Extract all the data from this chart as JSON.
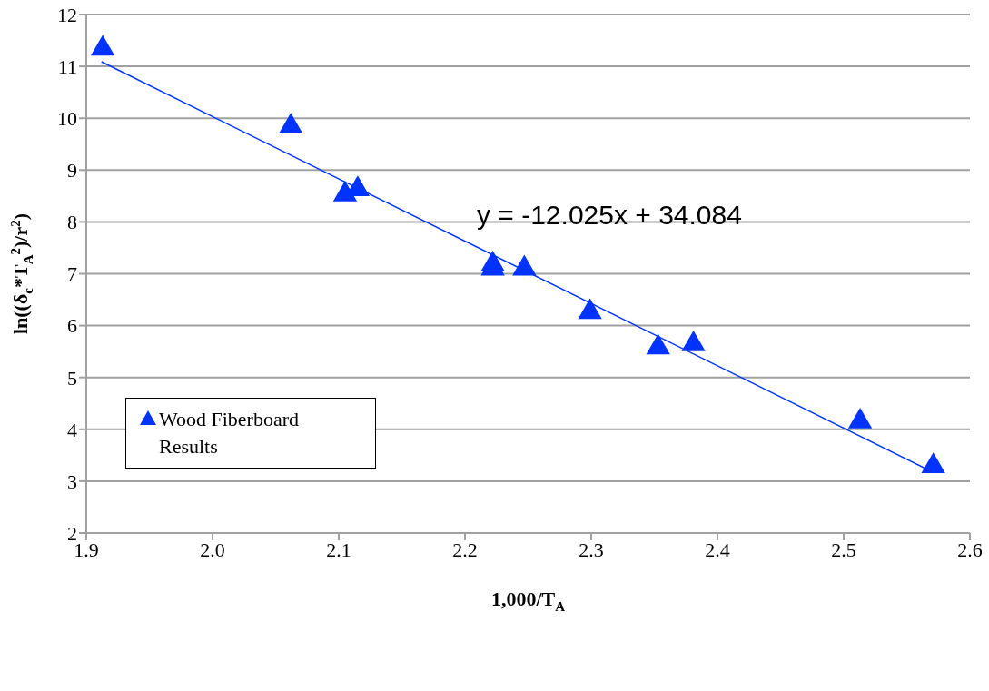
{
  "chart_data": {
    "type": "scatter",
    "xlabel": "1,000/T$_{A}$",
    "ylabel": "ln((δ$_{c}$*T$_{A}$$^{2}$)/r$^{2}$)",
    "xlim": [
      1.9,
      2.6
    ],
    "xticks": [
      1.9,
      {
        "value": 2.0,
        "label": "2.0"
      },
      2.1,
      2.2,
      2.3,
      2.4,
      2.5,
      2.6
    ],
    "ylim": [
      2,
      12
    ],
    "yticks": [
      2,
      3,
      4,
      5,
      6,
      7,
      8,
      9,
      10,
      11,
      12
    ],
    "grid": "y",
    "legend": "left",
    "marker": "triangle",
    "annotations": [
      "y = -12.025x + 34.084"
    ],
    "series": [
      {
        "name": "Wood Fiberboard Results",
        "color": "#0033ff",
        "x": [
          1.913,
          2.062,
          2.105,
          2.115,
          2.222,
          2.222,
          2.247,
          2.299,
          2.353,
          2.381,
          2.513,
          2.571
        ],
        "values": [
          11.34,
          9.84,
          8.53,
          8.63,
          7.18,
          7.1,
          7.1,
          6.26,
          5.58,
          5.64,
          4.15,
          3.29
        ]
      },
      {
        "type": "line",
        "color": "#0033ff",
        "line_style": "solid",
        "marker": "none",
        "x": [
          1.912,
          2.571
        ],
        "values": [
          11.09,
          3.17
        ]
      }
    ]
  }
}
